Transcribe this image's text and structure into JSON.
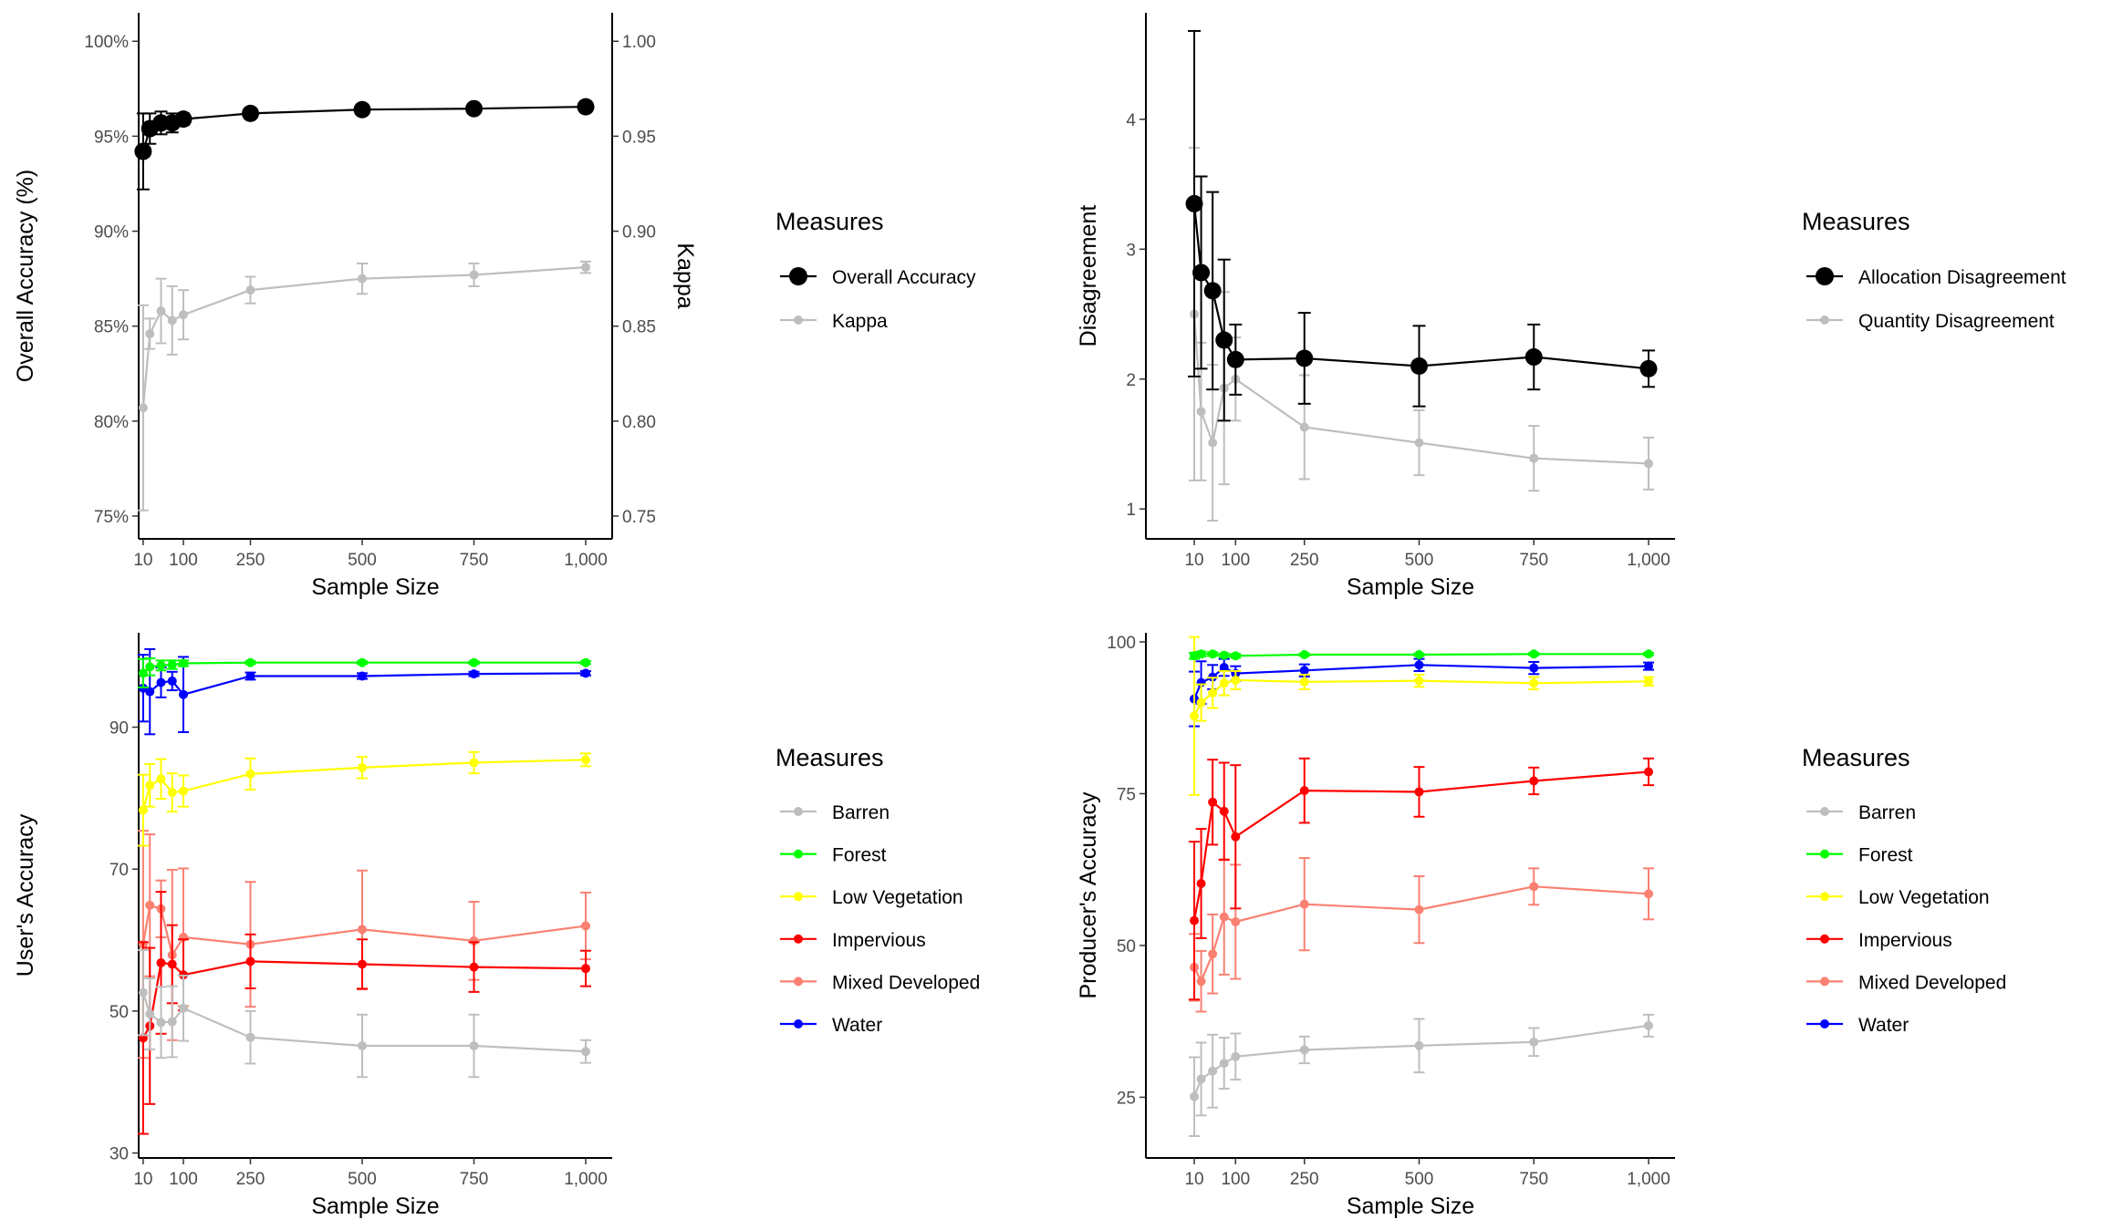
{
  "chart_data": [
    {
      "id": "p1",
      "type": "line",
      "xlabel": "Sample Size",
      "ylabel": "Overall Accuracy (%)",
      "y2label": "Kappa",
      "xlim": [
        0,
        1000
      ],
      "x_ticks": [
        10,
        100,
        250,
        500,
        750,
        1000
      ],
      "x_tick_labels": [
        "10",
        "100",
        "250",
        "500",
        "750",
        "1,000"
      ],
      "ylim": [
        73.8,
        101.5
      ],
      "y_ticks": [
        75,
        80,
        85,
        90,
        95,
        100
      ],
      "y_tick_labels": [
        "75%",
        "80%",
        "85%",
        "90%",
        "95%",
        "100%"
      ],
      "y2_ticks": [
        75,
        80,
        85,
        90,
        95,
        100
      ],
      "y2_tick_labels": [
        "0.75",
        "0.80",
        "0.85",
        "0.90",
        "0.95",
        "1.00"
      ],
      "legend_title": "Measures",
      "legend_position": "right",
      "grid": false,
      "series": [
        {
          "name": "Overall Accuracy",
          "color": "#000000",
          "marker": "large",
          "x": [
            10,
            25,
            50,
            75,
            100,
            250,
            500,
            750,
            1000
          ],
          "y": [
            94.2,
            95.4,
            95.7,
            95.7,
            95.9,
            96.2,
            96.4,
            96.45,
            96.55
          ],
          "err": [
            2.0,
            0.8,
            0.6,
            0.5,
            0.3,
            0.15,
            0.12,
            0.1,
            0.1
          ]
        },
        {
          "name": "Kappa",
          "color": "#bebebe",
          "marker": "small",
          "x": [
            10,
            25,
            50,
            75,
            100,
            250,
            500,
            750,
            1000
          ],
          "y": [
            80.7,
            84.6,
            85.8,
            85.3,
            85.6,
            86.9,
            87.5,
            87.7,
            88.1
          ],
          "err": [
            5.4,
            0.8,
            1.7,
            1.8,
            1.3,
            0.7,
            0.8,
            0.6,
            0.3
          ]
        }
      ]
    },
    {
      "id": "p2",
      "type": "line",
      "xlabel": "Sample Size",
      "ylabel": "Disagreement",
      "xlim": [
        0,
        1000
      ],
      "x_ticks": [
        10,
        100,
        250,
        500,
        750,
        1000
      ],
      "x_tick_labels": [
        "10",
        "100",
        "250",
        "500",
        "750",
        "1,000"
      ],
      "ylim": [
        0.77,
        4.82
      ],
      "y_ticks": [
        1,
        2,
        3,
        4
      ],
      "y_tick_labels": [
        "1",
        "2",
        "3",
        "4"
      ],
      "legend_title": "Measures",
      "legend_position": "right",
      "grid": false,
      "series": [
        {
          "name": "Allocation Disagreement",
          "color": "#000000",
          "marker": "large",
          "x": [
            10,
            25,
            50,
            75,
            100,
            250,
            500,
            750,
            1000
          ],
          "y": [
            3.35,
            2.82,
            2.68,
            2.3,
            2.15,
            2.16,
            2.1,
            2.17,
            2.08
          ],
          "err": [
            1.33,
            0.74,
            0.76,
            0.62,
            0.27,
            0.35,
            0.31,
            0.25,
            0.14
          ]
        },
        {
          "name": "Quantity Disagreement",
          "color": "#bebebe",
          "marker": "small",
          "x": [
            10,
            25,
            50,
            75,
            100,
            250,
            500,
            750,
            1000
          ],
          "y": [
            2.5,
            1.75,
            1.51,
            1.93,
            2.0,
            1.63,
            1.51,
            1.39,
            1.35
          ],
          "err": [
            1.28,
            0.53,
            0.6,
            0.74,
            0.32,
            0.4,
            0.25,
            0.25,
            0.2
          ]
        }
      ]
    },
    {
      "id": "p3",
      "type": "line",
      "xlabel": "Sample Size",
      "ylabel": "User's Accuracy",
      "xlim": [
        0,
        1000
      ],
      "x_ticks": [
        10,
        100,
        250,
        500,
        750,
        1000
      ],
      "x_tick_labels": [
        "10",
        "100",
        "250",
        "500",
        "750",
        "1,000"
      ],
      "ylim": [
        29.3,
        103.3
      ],
      "y_ticks": [
        30,
        50,
        70,
        90
      ],
      "y_tick_labels": [
        "30",
        "50",
        "70",
        "90"
      ],
      "legend_title": "Measures",
      "legend_position": "right",
      "grid": false,
      "series": [
        {
          "name": "Barren",
          "color": "#bebebe",
          "marker": "small",
          "x": [
            10,
            25,
            50,
            75,
            100,
            250,
            500,
            750,
            1000
          ],
          "y": [
            52.6,
            49.6,
            48.4,
            48.5,
            50.4,
            46.3,
            45.1,
            45.1,
            44.3
          ],
          "err": [
            6.0,
            5.0,
            5.0,
            5.0,
            4.6,
            3.7,
            4.4,
            4.4,
            1.6
          ]
        },
        {
          "name": "Forest",
          "color": "#00ff00",
          "marker": "small",
          "x": [
            10,
            25,
            50,
            75,
            100,
            250,
            500,
            750,
            1000
          ],
          "y": [
            97.6,
            98.5,
            98.7,
            98.8,
            99.0,
            99.1,
            99.1,
            99.1,
            99.1
          ],
          "err": [
            2.0,
            1.2,
            0.7,
            0.6,
            0.4,
            0.2,
            0.2,
            0.2,
            0.2
          ]
        },
        {
          "name": "Low Vegetation",
          "color": "#ffff00",
          "marker": "small",
          "x": [
            10,
            25,
            50,
            75,
            100,
            250,
            500,
            750,
            1000
          ],
          "y": [
            78.3,
            81.8,
            82.7,
            80.8,
            81.0,
            83.4,
            84.3,
            85.0,
            85.4
          ],
          "err": [
            5.0,
            3.0,
            2.8,
            2.7,
            2.2,
            2.2,
            1.5,
            1.5,
            0.9
          ]
        },
        {
          "name": "Impervious",
          "color": "#ff0000",
          "marker": "small",
          "x": [
            10,
            25,
            50,
            75,
            100,
            250,
            500,
            750,
            1000
          ],
          "y": [
            46.2,
            47.9,
            56.8,
            56.6,
            55.1,
            57.0,
            56.6,
            56.2,
            56.0
          ],
          "err": [
            13.5,
            11.0,
            10.0,
            5.5,
            5.0,
            3.8,
            3.5,
            3.5,
            2.5
          ]
        },
        {
          "name": "Mixed Developed",
          "color": "#fa8072",
          "marker": "small",
          "x": [
            10,
            25,
            50,
            75,
            100,
            250,
            500,
            750,
            1000
          ],
          "y": [
            59.4,
            64.9,
            64.4,
            57.9,
            60.4,
            59.4,
            61.5,
            59.9,
            62.0
          ],
          "err": [
            16.0,
            10.0,
            4.0,
            12.0,
            9.7,
            8.8,
            8.3,
            5.5,
            4.7
          ]
        },
        {
          "name": "Water",
          "color": "#0000ff",
          "marker": "small",
          "x": [
            10,
            25,
            50,
            75,
            100,
            250,
            500,
            750,
            1000
          ],
          "y": [
            95.5,
            95.0,
            96.3,
            96.5,
            94.6,
            97.2,
            97.2,
            97.5,
            97.6
          ],
          "err": [
            4.7,
            6.0,
            2.1,
            1.3,
            5.3,
            0.5,
            0.4,
            0.3,
            0.3
          ]
        }
      ]
    },
    {
      "id": "p4",
      "type": "line",
      "xlabel": "Sample Size",
      "ylabel": "Producer's Accuracy",
      "xlim": [
        0,
        1000
      ],
      "x_ticks": [
        10,
        100,
        250,
        500,
        750,
        1000
      ],
      "x_tick_labels": [
        "10",
        "100",
        "250",
        "500",
        "750",
        "1,000"
      ],
      "ylim": [
        15.0,
        101.5
      ],
      "y_ticks": [
        25,
        50,
        75,
        100
      ],
      "y_tick_labels": [
        "25",
        "50",
        "75",
        "100"
      ],
      "legend_title": "Measures",
      "legend_position": "right",
      "grid": false,
      "series": [
        {
          "name": "Barren",
          "color": "#bebebe",
          "marker": "small",
          "x": [
            10,
            25,
            50,
            75,
            100,
            250,
            500,
            750,
            1000
          ],
          "y": [
            25.1,
            28.0,
            29.3,
            30.6,
            31.7,
            32.8,
            33.5,
            34.1,
            36.8
          ],
          "err": [
            6.5,
            6.0,
            6.0,
            4.2,
            3.8,
            2.2,
            4.4,
            2.3,
            1.8
          ]
        },
        {
          "name": "Forest",
          "color": "#00ff00",
          "marker": "small",
          "x": [
            10,
            25,
            50,
            75,
            100,
            250,
            500,
            750,
            1000
          ],
          "y": [
            97.7,
            98.0,
            98.0,
            97.8,
            97.7,
            97.9,
            97.9,
            98.0,
            98.0
          ],
          "err": [
            0.5,
            0.4,
            0.3,
            0.3,
            0.3,
            0.2,
            0.2,
            0.2,
            0.2
          ]
        },
        {
          "name": "Low Vegetation",
          "color": "#ffff00",
          "marker": "small",
          "x": [
            10,
            25,
            50,
            75,
            100,
            250,
            500,
            750,
            1000
          ],
          "y": [
            87.8,
            90.0,
            91.6,
            93.2,
            93.7,
            93.4,
            93.6,
            93.2,
            93.5
          ],
          "err": [
            13.0,
            3.0,
            2.5,
            2.0,
            1.5,
            1.2,
            1.0,
            1.0,
            0.7
          ]
        },
        {
          "name": "Impervious",
          "color": "#ff0000",
          "marker": "small",
          "x": [
            10,
            25,
            50,
            75,
            100,
            250,
            500,
            750,
            1000
          ],
          "y": [
            54.1,
            60.2,
            73.6,
            72.1,
            67.9,
            75.5,
            75.3,
            77.1,
            78.6
          ],
          "err": [
            13.0,
            9.0,
            7.0,
            8.0,
            11.8,
            5.3,
            4.1,
            2.2,
            2.2
          ]
        },
        {
          "name": "Mixed Developed",
          "color": "#fa8072",
          "marker": "small",
          "x": [
            10,
            25,
            50,
            75,
            100,
            250,
            500,
            750,
            1000
          ],
          "y": [
            46.4,
            44.1,
            48.6,
            54.7,
            53.9,
            56.8,
            55.9,
            59.7,
            58.5
          ],
          "err": [
            5.5,
            5.0,
            6.5,
            9.5,
            9.4,
            7.6,
            5.5,
            3.0,
            4.2
          ]
        },
        {
          "name": "Water",
          "color": "#0000ff",
          "marker": "small",
          "x": [
            10,
            25,
            50,
            75,
            100,
            250,
            500,
            750,
            1000
          ],
          "y": [
            90.6,
            93.3,
            94.2,
            95.8,
            94.8,
            95.3,
            96.2,
            95.7,
            96.0
          ],
          "err": [
            4.5,
            3.5,
            2.0,
            1.4,
            1.2,
            1.0,
            1.0,
            1.0,
            0.6
          ]
        }
      ]
    }
  ]
}
